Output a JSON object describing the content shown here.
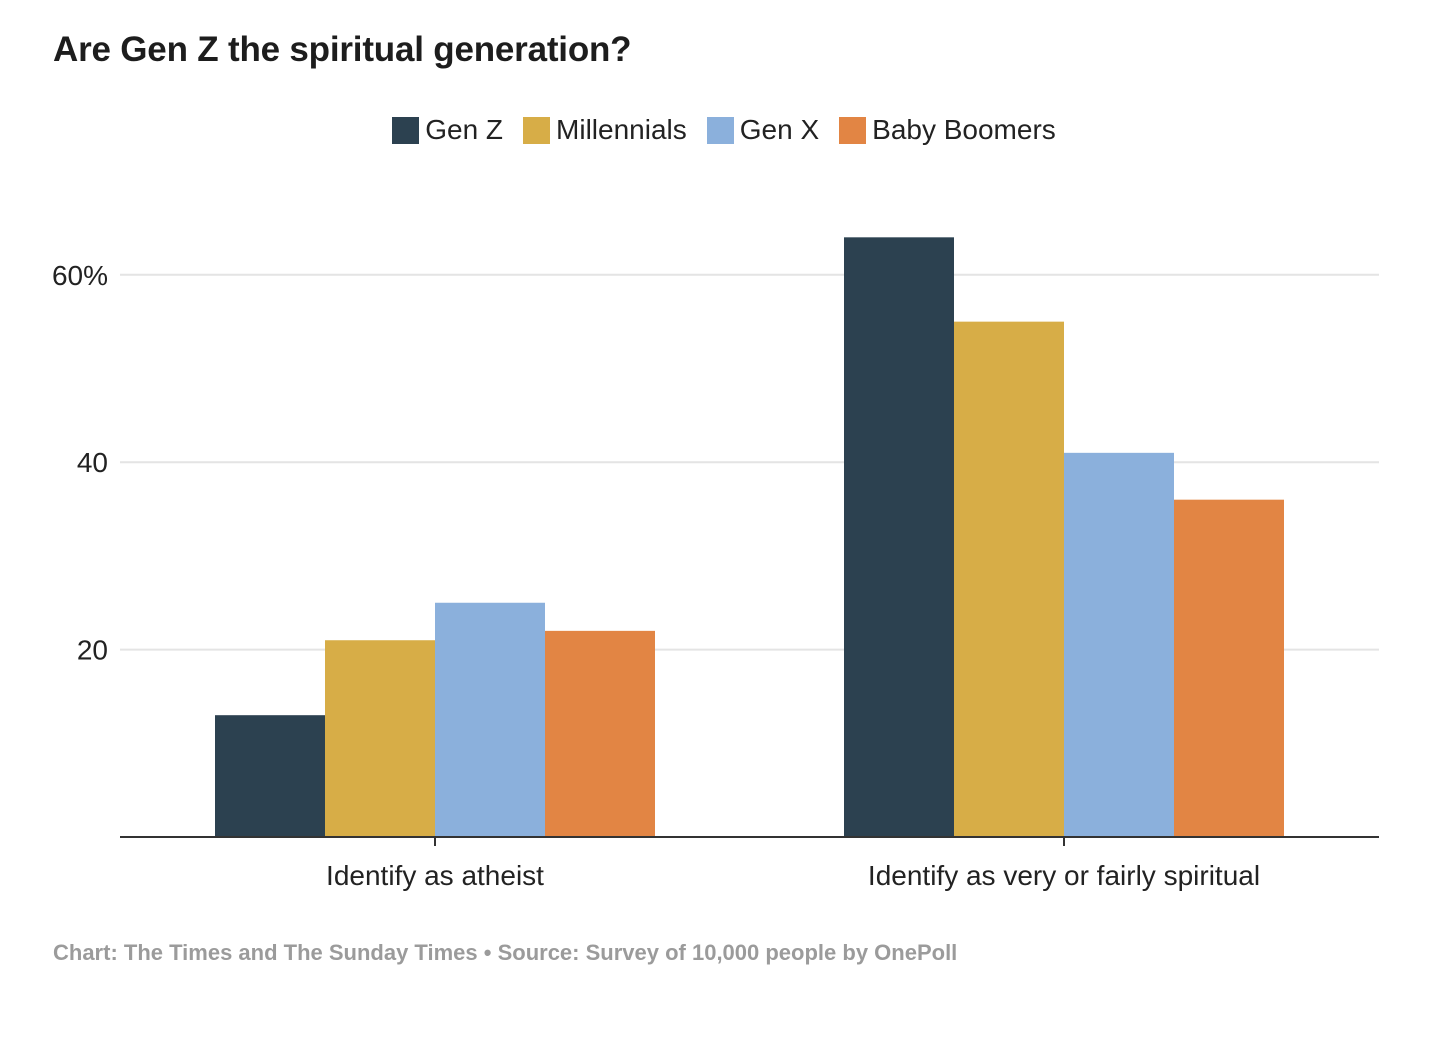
{
  "title": "Are Gen Z the spiritual generation?",
  "footer": {
    "credit": "Chart: The Times and The Sunday Times",
    "separator": "•",
    "source": "Source: Survey of 10,000 people by OnePoll"
  },
  "chart_data": {
    "type": "bar",
    "title": "Are Gen Z the spiritual generation?",
    "categories": [
      "Identify as atheist",
      "Identify as very or fairly spiritual"
    ],
    "series": [
      {
        "name": "Gen Z",
        "color": "#2c4150",
        "values": [
          13,
          64
        ]
      },
      {
        "name": "Millennials",
        "color": "#d7ad47",
        "values": [
          21,
          55
        ]
      },
      {
        "name": "Gen X",
        "color": "#8bb0dc",
        "values": [
          25,
          41
        ]
      },
      {
        "name": "Baby Boomers",
        "color": "#e28544",
        "values": [
          22,
          36
        ]
      }
    ],
    "yticks": [
      {
        "value": 20,
        "label": "20"
      },
      {
        "value": 40,
        "label": "40"
      },
      {
        "value": 60,
        "label": "60%"
      }
    ],
    "ylim": [
      0,
      70
    ],
    "xlabel": "",
    "ylabel": "",
    "grid": true,
    "legend": "top-center"
  }
}
